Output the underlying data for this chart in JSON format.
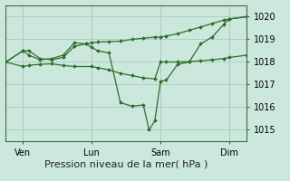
{
  "background_color": "#cce8dc",
  "grid_color": "#aaccbb",
  "line_color": "#2d6e2d",
  "marker_color": "#2d6e2d",
  "xlabel": "Pression niveau de la mer( hPa )",
  "ylim": [
    1014.5,
    1020.5
  ],
  "yticks": [
    1015,
    1016,
    1017,
    1018,
    1019,
    1020
  ],
  "xlim": [
    0,
    21
  ],
  "xtick_positions": [
    1.5,
    7.5,
    13.5,
    19.5
  ],
  "xtick_labels": [
    "Ven",
    "Lun",
    "Sam",
    "Dim"
  ],
  "vline_positions": [
    1.5,
    7.5,
    13.5,
    19.5
  ],
  "series1_x": [
    0,
    1.5,
    2,
    3,
    4,
    5,
    6,
    7.5,
    8,
    9,
    10,
    11,
    12,
    13,
    13.5,
    14,
    15,
    16,
    17,
    18,
    19,
    19.5,
    21
  ],
  "series1_y": [
    1018.0,
    1017.8,
    1017.85,
    1017.9,
    1017.92,
    1017.85,
    1017.8,
    1017.8,
    1017.75,
    1017.65,
    1017.5,
    1017.4,
    1017.3,
    1017.25,
    1018.0,
    1018.0,
    1018.0,
    1018.02,
    1018.05,
    1018.1,
    1018.15,
    1018.2,
    1018.3
  ],
  "series2_x": [
    0,
    1.5,
    2,
    3,
    4,
    5,
    6,
    7,
    7.5,
    8,
    9,
    10,
    11,
    12,
    13,
    13.5,
    14,
    15,
    16,
    17,
    18,
    19,
    19.5,
    21
  ],
  "series2_y": [
    1018.0,
    1018.5,
    1018.5,
    1018.15,
    1018.1,
    1018.2,
    1018.7,
    1018.8,
    1018.85,
    1018.88,
    1018.9,
    1018.92,
    1019.0,
    1019.05,
    1019.1,
    1019.1,
    1019.15,
    1019.25,
    1019.4,
    1019.55,
    1019.7,
    1019.85,
    1019.9,
    1020.0
  ],
  "series3_x": [
    0,
    1.5,
    2,
    3,
    4,
    5,
    6,
    7,
    7.5,
    8,
    9,
    10,
    11,
    12,
    12.5,
    13,
    13.5,
    14,
    15,
    16,
    17,
    18,
    19,
    19.5,
    21
  ],
  "series3_y": [
    1018.0,
    1018.5,
    1018.3,
    1018.1,
    1018.15,
    1018.3,
    1018.85,
    1018.8,
    1018.65,
    1018.5,
    1018.4,
    1016.2,
    1016.05,
    1016.1,
    1015.0,
    1015.4,
    1017.15,
    1017.2,
    1017.9,
    1018.0,
    1018.8,
    1019.1,
    1019.65,
    1019.9,
    1020.0
  ],
  "marker_size": 2.0,
  "linewidth": 0.9,
  "xlabel_fontsize": 8,
  "tick_fontsize": 7
}
